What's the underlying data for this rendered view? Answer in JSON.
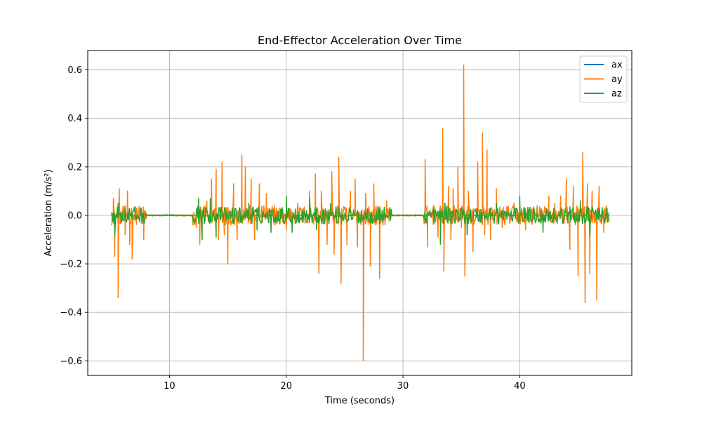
{
  "chart_data": {
    "type": "line",
    "title": "End-Effector Acceleration Over Time",
    "xlabel": "Time (seconds)",
    "ylabel": "Acceleration (m/s²)",
    "xlim": [
      3.0,
      49.6
    ],
    "ylim": [
      -0.66,
      0.68
    ],
    "xticks": [
      10,
      20,
      30,
      40
    ],
    "xtick_labels": [
      "10",
      "20",
      "30",
      "40"
    ],
    "yticks": [
      -0.6,
      -0.4,
      -0.2,
      0.0,
      0.2,
      0.4,
      0.6
    ],
    "ytick_labels": [
      "−0.6",
      "−0.4",
      "−0.2",
      "0.0",
      "0.2",
      "0.4",
      "0.6"
    ],
    "grid": true,
    "legend_position": "top-right",
    "x_range": [
      5.0,
      47.7
    ],
    "active_segments": [
      [
        5.0,
        8.0
      ],
      [
        12.0,
        25.8
      ],
      [
        26.0,
        29.0
      ],
      [
        31.8,
        47.7
      ]
    ],
    "series": [
      {
        "name": "ax",
        "color": "#1f77b4",
        "baseline": 0.0,
        "amplitude": 0.0,
        "spikes": []
      },
      {
        "name": "ay",
        "color": "#ff7f0e",
        "baseline": 0.0,
        "amplitude": 0.04,
        "spikes": [
          [
            5.2,
            0.07
          ],
          [
            5.3,
            -0.17
          ],
          [
            5.6,
            -0.34
          ],
          [
            5.7,
            0.11
          ],
          [
            6.2,
            -0.08
          ],
          [
            6.4,
            0.1
          ],
          [
            6.6,
            -0.12
          ],
          [
            6.8,
            -0.18
          ],
          [
            7.2,
            0.03
          ],
          [
            7.8,
            -0.1
          ],
          [
            12.3,
            -0.05
          ],
          [
            12.6,
            -0.12
          ],
          [
            13.2,
            0.06
          ],
          [
            13.6,
            0.15
          ],
          [
            14.0,
            0.19
          ],
          [
            14.2,
            -0.1
          ],
          [
            14.5,
            0.22
          ],
          [
            14.7,
            -0.08
          ],
          [
            15.0,
            -0.2
          ],
          [
            15.5,
            0.13
          ],
          [
            15.8,
            -0.1
          ],
          [
            16.2,
            0.25
          ],
          [
            16.5,
            0.2
          ],
          [
            17.0,
            0.15
          ],
          [
            17.3,
            -0.1
          ],
          [
            17.7,
            0.13
          ],
          [
            18.3,
            0.09
          ],
          [
            19.0,
            0.04
          ],
          [
            20.0,
            -0.06
          ],
          [
            21.0,
            0.05
          ],
          [
            22.0,
            0.1
          ],
          [
            22.5,
            0.17
          ],
          [
            22.8,
            -0.24
          ],
          [
            23.0,
            0.1
          ],
          [
            23.5,
            -0.12
          ],
          [
            23.9,
            0.18
          ],
          [
            24.1,
            -0.16
          ],
          [
            24.5,
            0.24
          ],
          [
            24.7,
            -0.28
          ],
          [
            25.2,
            -0.12
          ],
          [
            25.5,
            0.1
          ],
          [
            25.9,
            0.15
          ],
          [
            26.1,
            -0.13
          ],
          [
            26.6,
            -0.6
          ],
          [
            26.8,
            0.09
          ],
          [
            27.2,
            -0.21
          ],
          [
            27.5,
            0.13
          ],
          [
            28.0,
            -0.26
          ],
          [
            28.2,
            -0.02
          ],
          [
            28.6,
            0.06
          ],
          [
            31.9,
            0.23
          ],
          [
            32.1,
            -0.13
          ],
          [
            32.6,
            0.04
          ],
          [
            33.0,
            -0.09
          ],
          [
            33.4,
            0.36
          ],
          [
            33.5,
            -0.23
          ],
          [
            33.9,
            0.12
          ],
          [
            34.1,
            -0.1
          ],
          [
            34.3,
            0.11
          ],
          [
            34.7,
            0.2
          ],
          [
            35.0,
            -0.05
          ],
          [
            35.2,
            0.62
          ],
          [
            35.3,
            -0.25
          ],
          [
            35.6,
            0.1
          ],
          [
            36.0,
            -0.15
          ],
          [
            36.4,
            0.22
          ],
          [
            36.8,
            0.34
          ],
          [
            37.0,
            -0.08
          ],
          [
            37.2,
            0.27
          ],
          [
            37.5,
            -0.1
          ],
          [
            38.0,
            0.11
          ],
          [
            38.5,
            -0.05
          ],
          [
            39.5,
            0.05
          ],
          [
            40.5,
            -0.06
          ],
          [
            41.5,
            0.04
          ],
          [
            42.5,
            0.08
          ],
          [
            43.0,
            0.05
          ],
          [
            43.5,
            0.08
          ],
          [
            44.0,
            0.15
          ],
          [
            44.3,
            -0.14
          ],
          [
            44.6,
            0.12
          ],
          [
            45.0,
            -0.25
          ],
          [
            45.4,
            0.26
          ],
          [
            45.6,
            -0.36
          ],
          [
            45.8,
            0.13
          ],
          [
            46.0,
            -0.24
          ],
          [
            46.2,
            0.1
          ],
          [
            46.6,
            -0.35
          ],
          [
            46.8,
            0.12
          ],
          [
            47.2,
            -0.07
          ]
        ]
      },
      {
        "name": "az",
        "color": "#2ca02c",
        "baseline": 0.0,
        "amplitude": 0.035,
        "spikes": [
          [
            5.3,
            -0.08
          ],
          [
            5.6,
            0.05
          ],
          [
            12.5,
            0.07
          ],
          [
            12.8,
            -0.1
          ],
          [
            13.5,
            0.07
          ],
          [
            14.0,
            -0.09
          ],
          [
            16.8,
            0.05
          ],
          [
            17.5,
            -0.06
          ],
          [
            18.7,
            -0.07
          ],
          [
            20.0,
            0.08
          ],
          [
            20.5,
            -0.07
          ],
          [
            22.0,
            0.07
          ],
          [
            22.6,
            -0.06
          ],
          [
            23.8,
            0.05
          ],
          [
            33.2,
            -0.12
          ],
          [
            33.6,
            0.05
          ],
          [
            35.5,
            -0.08
          ],
          [
            38.0,
            0.05
          ],
          [
            40.0,
            0.08
          ],
          [
            42.0,
            -0.07
          ],
          [
            45.2,
            0.06
          ],
          [
            46.0,
            -0.08
          ]
        ]
      }
    ]
  }
}
